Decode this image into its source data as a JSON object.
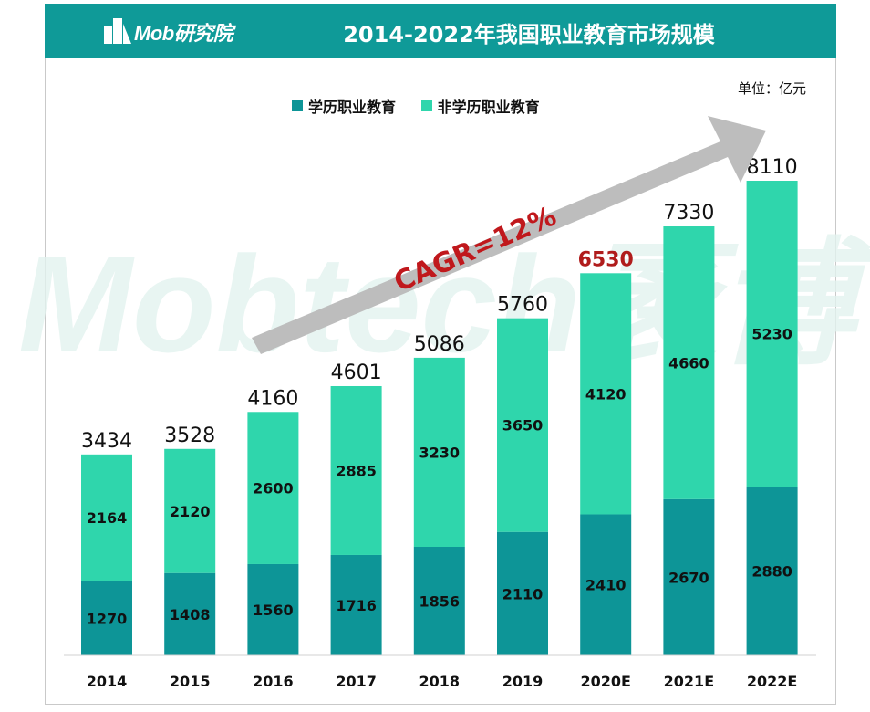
{
  "header": {
    "logo_text": "Mob研究院",
    "title": "2014-2022年我国职业教育市场规模"
  },
  "unit_label": "单位：亿元",
  "watermark": "Mobtech袤博",
  "colors": {
    "header_bg": "#0f9a98",
    "series_academic": "#0d9597",
    "series_nonacademic": "#2fd6ac",
    "highlight_total": "#b01c1c",
    "arrow": "#bdbdbd",
    "cagr_text": "#c0181c"
  },
  "annotation": {
    "cagr": "CAGR=12%"
  },
  "chart_data": {
    "type": "bar",
    "stacked": true,
    "title": "2014-2022年我国职业教育市场规模",
    "categories": [
      "2014",
      "2015",
      "2016",
      "2017",
      "2018",
      "2019",
      "2020E",
      "2021E",
      "2022E"
    ],
    "series": [
      {
        "name": "学历职业教育",
        "values": [
          1270,
          1408,
          1560,
          1716,
          1856,
          2110,
          2410,
          2670,
          2880
        ]
      },
      {
        "name": "非学历职业教育",
        "values": [
          2164,
          2120,
          2600,
          2885,
          3230,
          3650,
          4120,
          4660,
          5230
        ]
      }
    ],
    "totals": [
      "3434",
      "3528",
      "4160",
      "4601",
      "5086",
      "5760",
      "6530",
      "7330",
      "8110"
    ],
    "highlight_total_index": 6,
    "ylim": [
      0,
      8110
    ],
    "legend": "top",
    "grid": false,
    "xlabel": "",
    "ylabel": ""
  }
}
